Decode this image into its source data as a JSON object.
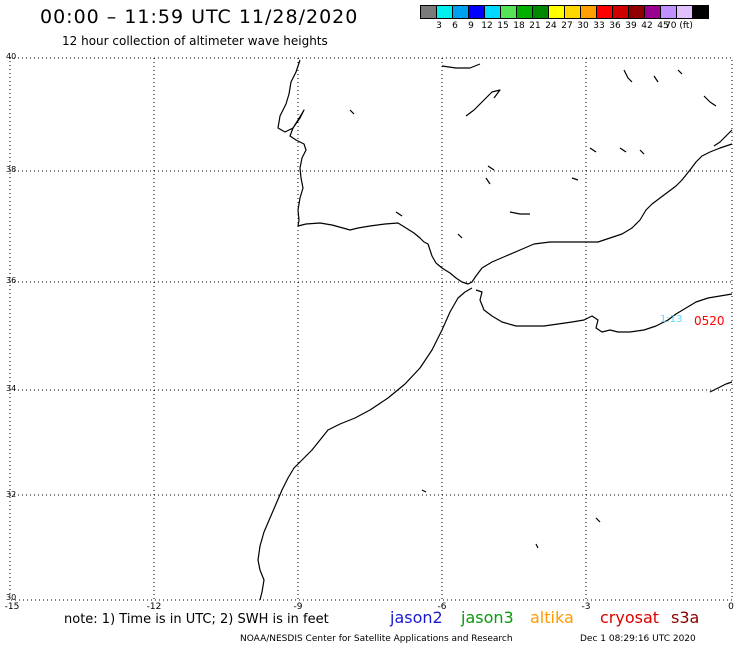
{
  "header": {
    "title": "00:00 – 11:59 UTC 11/28/2020",
    "subtitle": "12 hour collection of altimeter wave heights"
  },
  "legend": {
    "colors": [
      "#7a7a7a",
      "#00f0f0",
      "#00a0f0",
      "#0000ff",
      "#00d8ff",
      "#55e455",
      "#00b000",
      "#008800",
      "#ffff00",
      "#ffd800",
      "#ffa000",
      "#ff0000",
      "#d00000",
      "#900000",
      "#9a0090",
      "#c090ff",
      "#e0c0ff",
      "#000000"
    ],
    "labels": [
      "3",
      "6",
      "9",
      "12",
      "15",
      "18",
      "21",
      "24",
      "27",
      "30",
      "33",
      "36",
      "39",
      "42",
      "45",
      "70 (ft)"
    ]
  },
  "map": {
    "lat_labels": [
      "40",
      "38",
      "36",
      "34",
      "32",
      "30"
    ],
    "lon_labels": [
      "-15",
      "-12",
      "-9",
      "-6",
      "-3",
      "0"
    ],
    "tracks": [
      {
        "label": "1:13",
        "color": "#55d8ff"
      },
      {
        "label": "0520",
        "color": "#ff0000"
      }
    ]
  },
  "footer": {
    "note": "note:  1) Time is in UTC;  2) SWH is in feet",
    "satellites": [
      {
        "name": "jason2",
        "color": "#1a1acc"
      },
      {
        "name": "jason3",
        "color": "#0a9a0a"
      },
      {
        "name": "altika",
        "color": "#ff9a00"
      },
      {
        "name": "cryosat",
        "color": "#e00000"
      },
      {
        "name": "s3a",
        "color": "#8a0000"
      }
    ],
    "credit": "NOAA/NESDIS Center for Satellite Applications and Research",
    "timestamp": "Dec  1 08:29:16 UTC 2020"
  }
}
